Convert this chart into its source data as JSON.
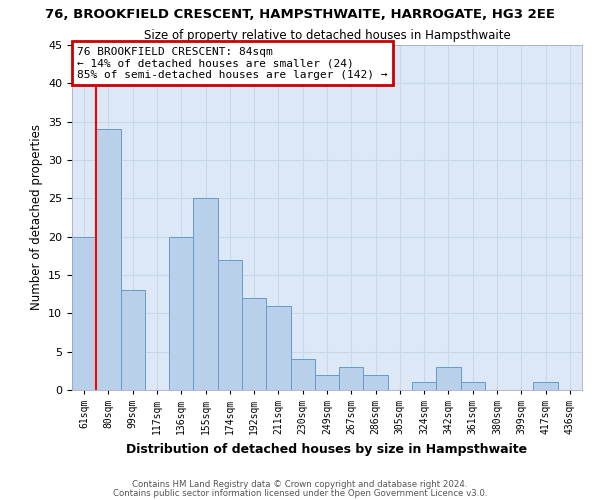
{
  "title": "76, BROOKFIELD CRESCENT, HAMPSTHWAITE, HARROGATE, HG3 2EE",
  "subtitle": "Size of property relative to detached houses in Hampsthwaite",
  "xlabel": "Distribution of detached houses by size in Hampsthwaite",
  "ylabel": "Number of detached properties",
  "bar_color": "#b8d0ea",
  "bar_edge_color": "#6699cc",
  "grid_color": "#c8d8e8",
  "plot_bg_color": "#dce8f5",
  "fig_bg_color": "#ffffff",
  "categories": [
    "61sqm",
    "80sqm",
    "99sqm",
    "117sqm",
    "136sqm",
    "155sqm",
    "174sqm",
    "192sqm",
    "211sqm",
    "230sqm",
    "249sqm",
    "267sqm",
    "286sqm",
    "305sqm",
    "324sqm",
    "342sqm",
    "361sqm",
    "380sqm",
    "399sqm",
    "417sqm",
    "436sqm"
  ],
  "values": [
    20,
    34,
    13,
    0,
    20,
    25,
    17,
    12,
    11,
    4,
    2,
    3,
    2,
    0,
    1,
    3,
    1,
    0,
    0,
    1,
    0
  ],
  "ylim": [
    0,
    45
  ],
  "yticks": [
    0,
    5,
    10,
    15,
    20,
    25,
    30,
    35,
    40,
    45
  ],
  "red_line_index": 1,
  "annotation_text": "76 BROOKFIELD CRESCENT: 84sqm\n← 14% of detached houses are smaller (24)\n85% of semi-detached houses are larger (142) →",
  "annotation_box_color": "#ffffff",
  "annotation_box_edge_color": "#cc0000",
  "footer_line1": "Contains HM Land Registry data © Crown copyright and database right 2024.",
  "footer_line2": "Contains public sector information licensed under the Open Government Licence v3.0."
}
